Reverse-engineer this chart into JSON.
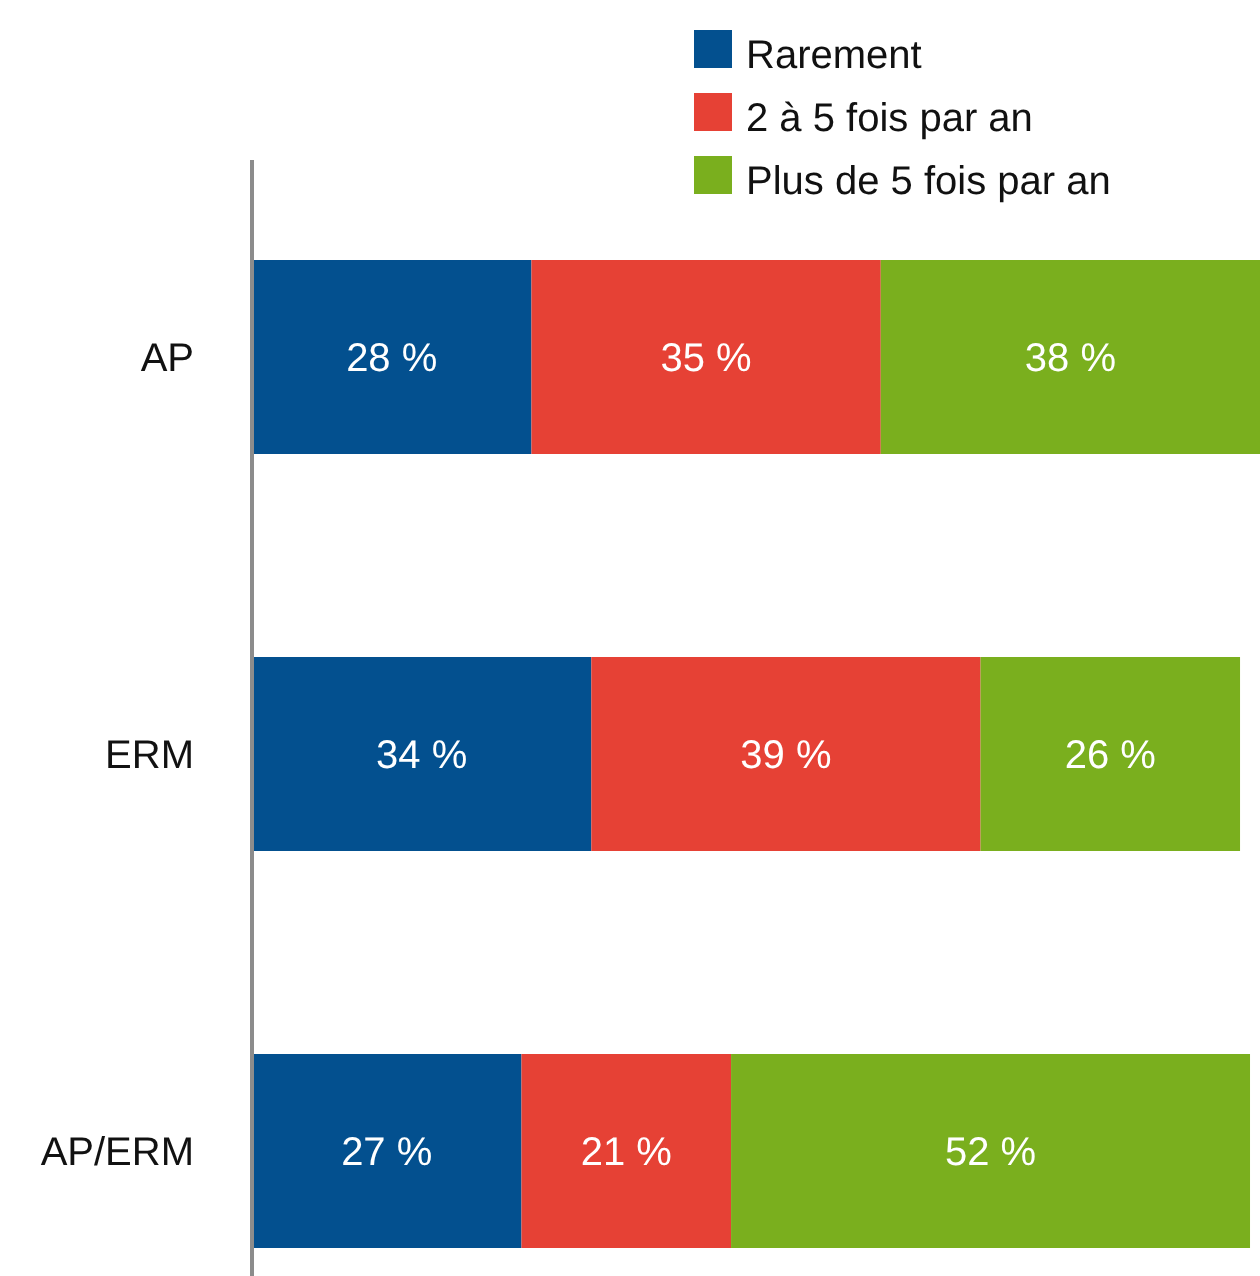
{
  "chart_data": {
    "type": "bar",
    "orientation": "horizontal",
    "stacked": true,
    "categories": [
      "AP",
      "ERM",
      "AP/ERM"
    ],
    "series": [
      {
        "name": "Rarement",
        "color": "#03508f",
        "values": [
          28,
          34,
          27
        ],
        "value_labels": [
          "28 %",
          "34 %",
          "27 %"
        ]
      },
      {
        "name": "2 à 5 fois par an",
        "color": "#e64135",
        "values": [
          35,
          39,
          21
        ],
        "value_labels": [
          "35 %",
          "39 %",
          "21 %"
        ]
      },
      {
        "name": "Plus de 5 fois par an",
        "color": "#7aaf1e",
        "values": [
          38,
          26,
          52
        ],
        "value_labels": [
          "38 %",
          "26 %",
          "52 %"
        ]
      }
    ],
    "legend": "top right",
    "tick_labels": "y"
  }
}
